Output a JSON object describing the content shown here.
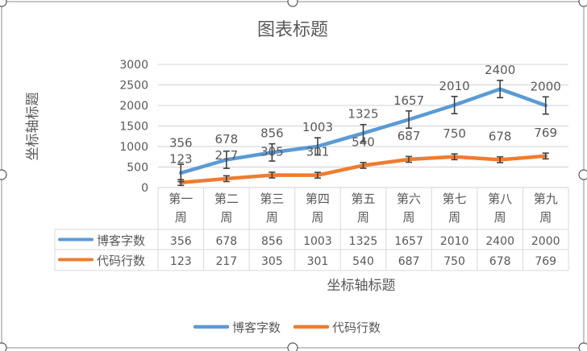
{
  "chart_data": {
    "type": "line",
    "title": "图表标题",
    "xlabel": "坐标轴标题",
    "ylabel": "坐标轴标题",
    "ylim": [
      0,
      3000
    ],
    "yticks": [
      0,
      500,
      1000,
      1500,
      2000,
      2500,
      3000
    ],
    "grid": true,
    "legend_position": "bottom",
    "categories": [
      [
        "第一",
        "周"
      ],
      [
        "第二",
        "周"
      ],
      [
        "第三",
        "周"
      ],
      [
        "第四",
        "周"
      ],
      [
        "第五",
        "周"
      ],
      [
        "第六",
        "周"
      ],
      [
        "第七",
        "周"
      ],
      [
        "第八",
        "周"
      ],
      [
        "第九",
        "周"
      ]
    ],
    "series": [
      {
        "name": "博客字数",
        "color": "#5B9BD5",
        "values": [
          356,
          678,
          856,
          1003,
          1325,
          1657,
          2010,
          2400,
          2000
        ],
        "error": 210
      },
      {
        "name": "代码行数",
        "color": "#ED7D31",
        "values": [
          123,
          217,
          305,
          301,
          540,
          687,
          750,
          678,
          769
        ],
        "error": 70
      }
    ],
    "data_table": true
  }
}
